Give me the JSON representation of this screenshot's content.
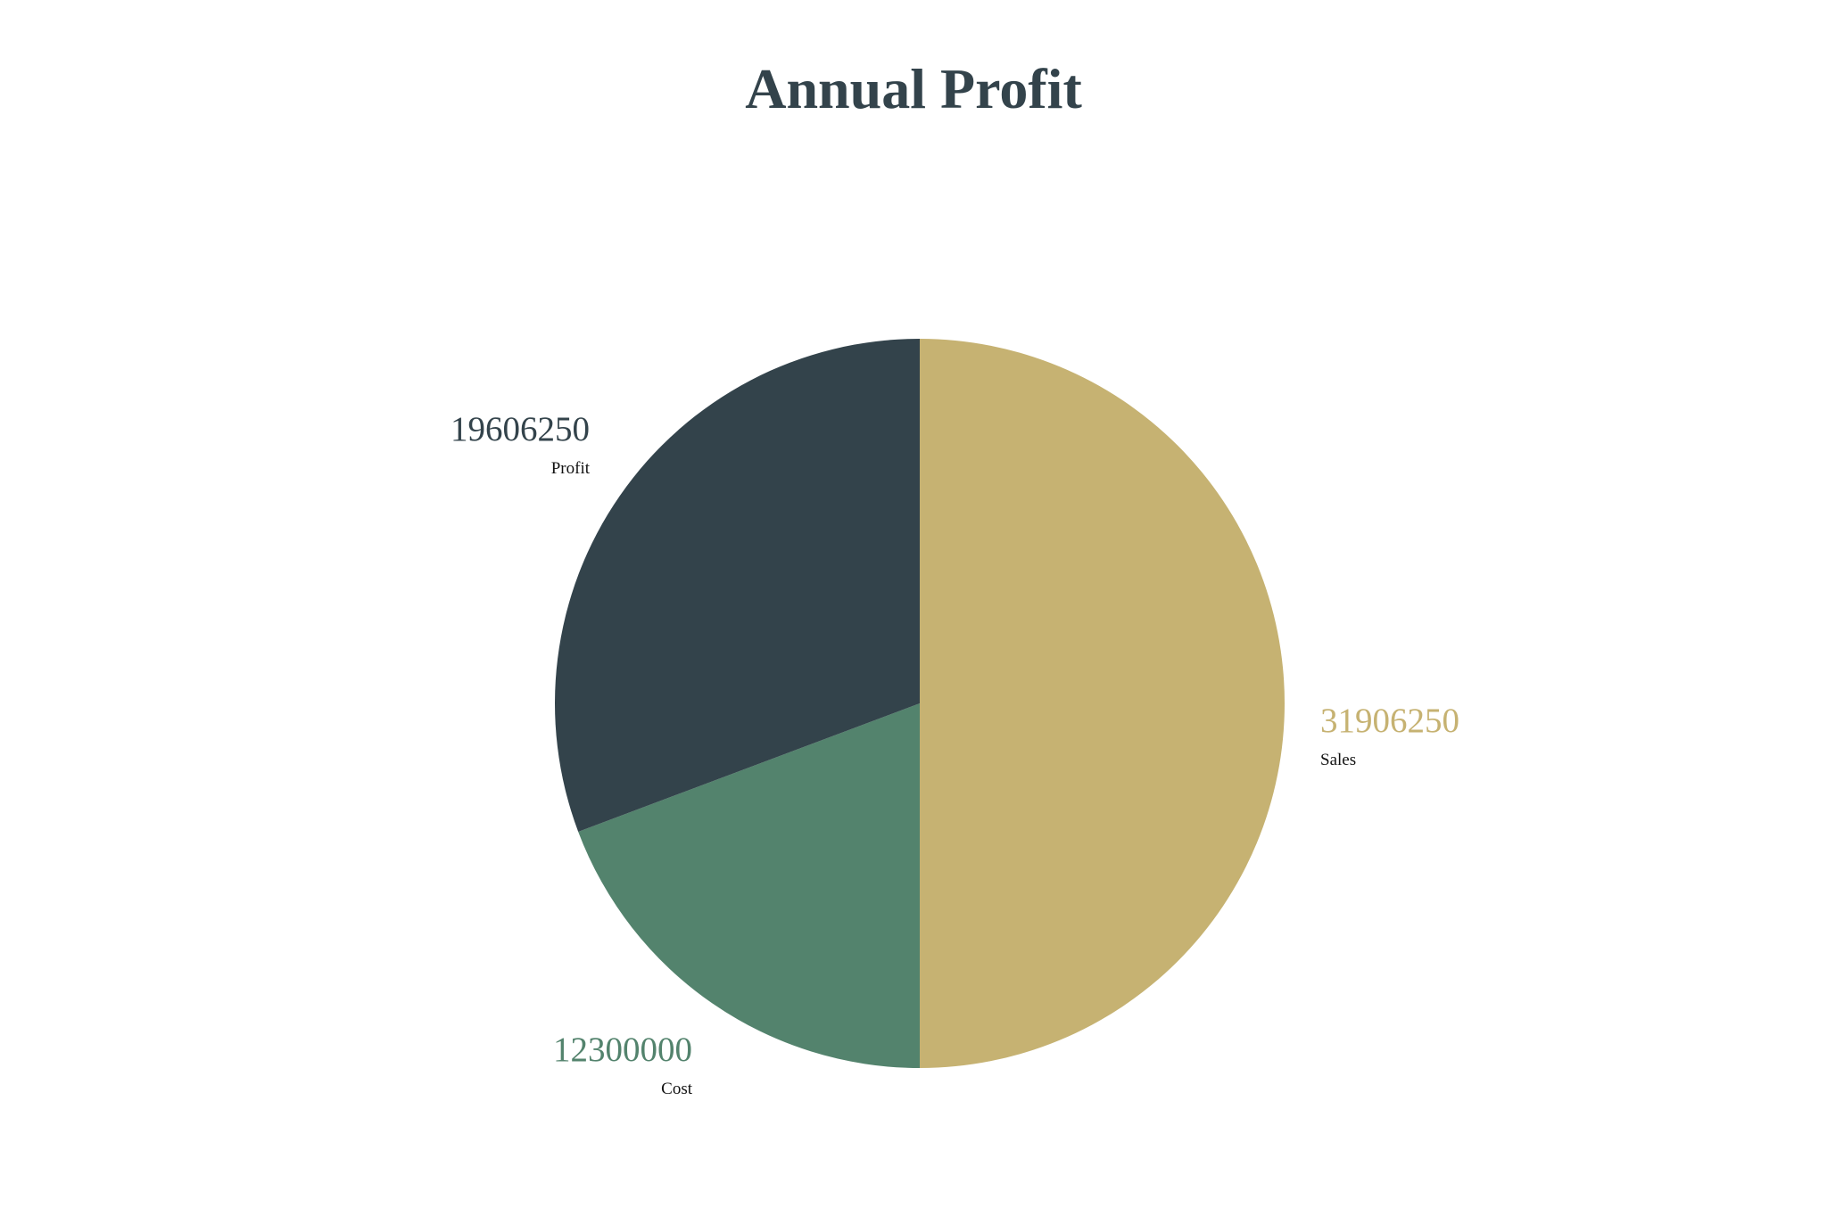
{
  "chart_data": {
    "type": "pie",
    "title": "Annual Profit",
    "categories": [
      "Sales",
      "Cost",
      "Profit"
    ],
    "values": [
      31906250,
      12300000,
      19606250
    ],
    "value_labels": [
      "31906250",
      "12300000",
      "19606250"
    ],
    "colors": [
      "#c6b272",
      "#53836d",
      "#33434b"
    ],
    "start_angle": "top",
    "direction": "clockwise",
    "legend": "none"
  }
}
